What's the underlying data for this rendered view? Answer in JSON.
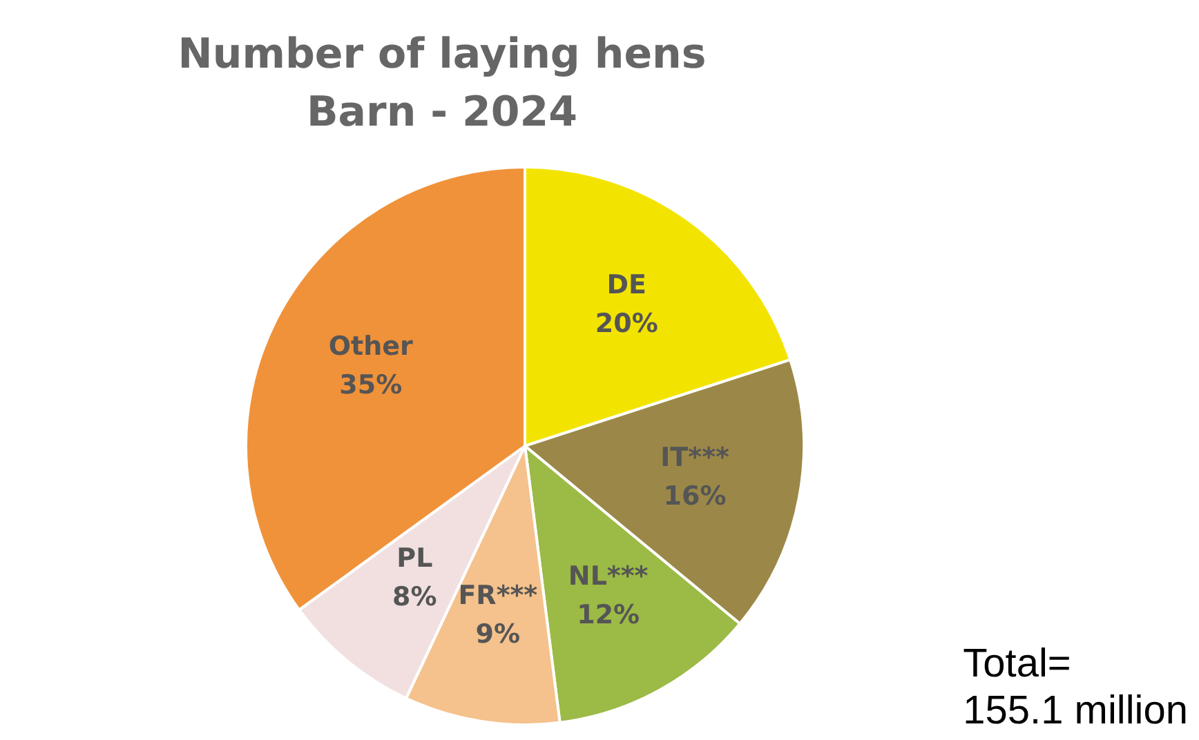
{
  "chart_data": {
    "type": "pie",
    "title": "Number of laying hens",
    "subtitle": "Barn - 2024",
    "categories": [
      "DE",
      "IT***",
      "NL***",
      "FR***",
      "PL",
      "Other"
    ],
    "values": [
      20,
      16,
      12,
      9,
      8,
      35
    ],
    "value_labels": [
      "20%",
      "16%",
      "12%",
      "9%",
      "8%",
      "35%"
    ],
    "colors": [
      "#f2e400",
      "#9b8848",
      "#9cba46",
      "#f5c18c",
      "#f2e0e1",
      "#f0923a"
    ],
    "annotations": [
      "Total=\n155.1 million"
    ]
  }
}
